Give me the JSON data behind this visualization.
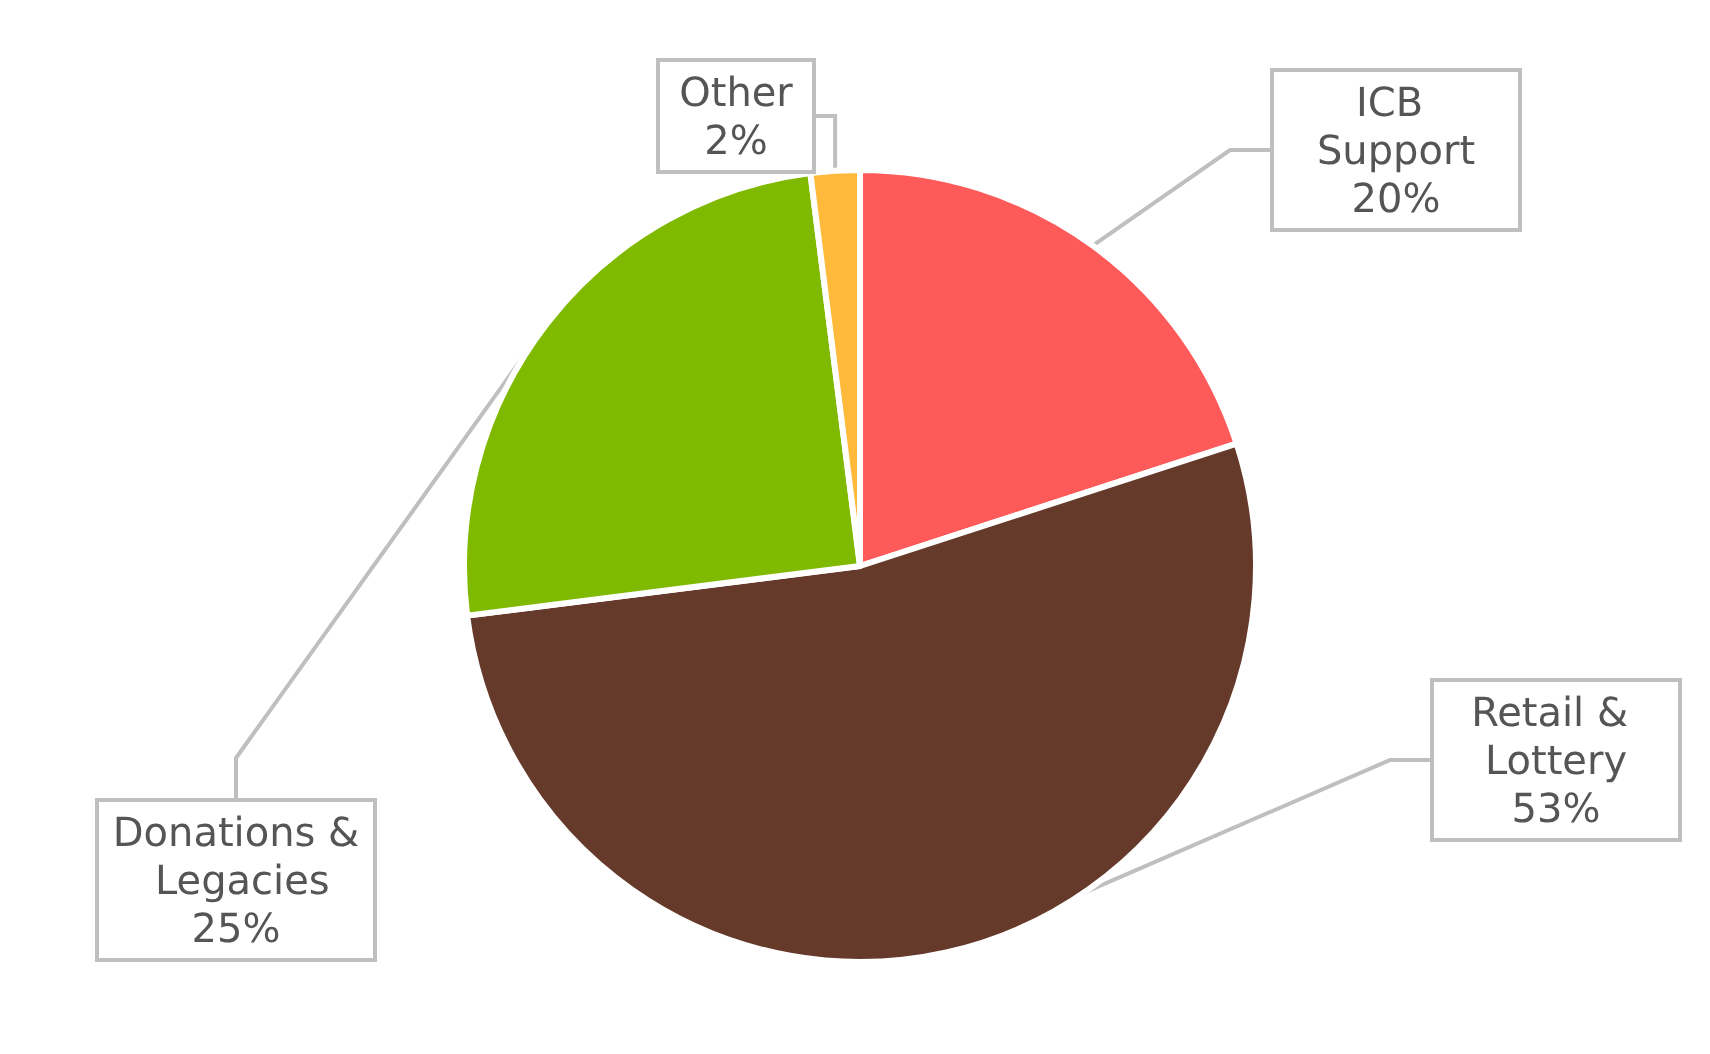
{
  "chart_data": {
    "type": "pie",
    "categories": [
      "ICB Support",
      "Retail & Lottery",
      "Donations & Legacies",
      "Other"
    ],
    "values": [
      20,
      53,
      25,
      2
    ],
    "value_labels": [
      "20%",
      "53%",
      "25%",
      "2%"
    ],
    "colors": [
      "#ff5a5a",
      "#653a2a",
      "#7fba00",
      "#ffb93b"
    ],
    "legend": false
  }
}
